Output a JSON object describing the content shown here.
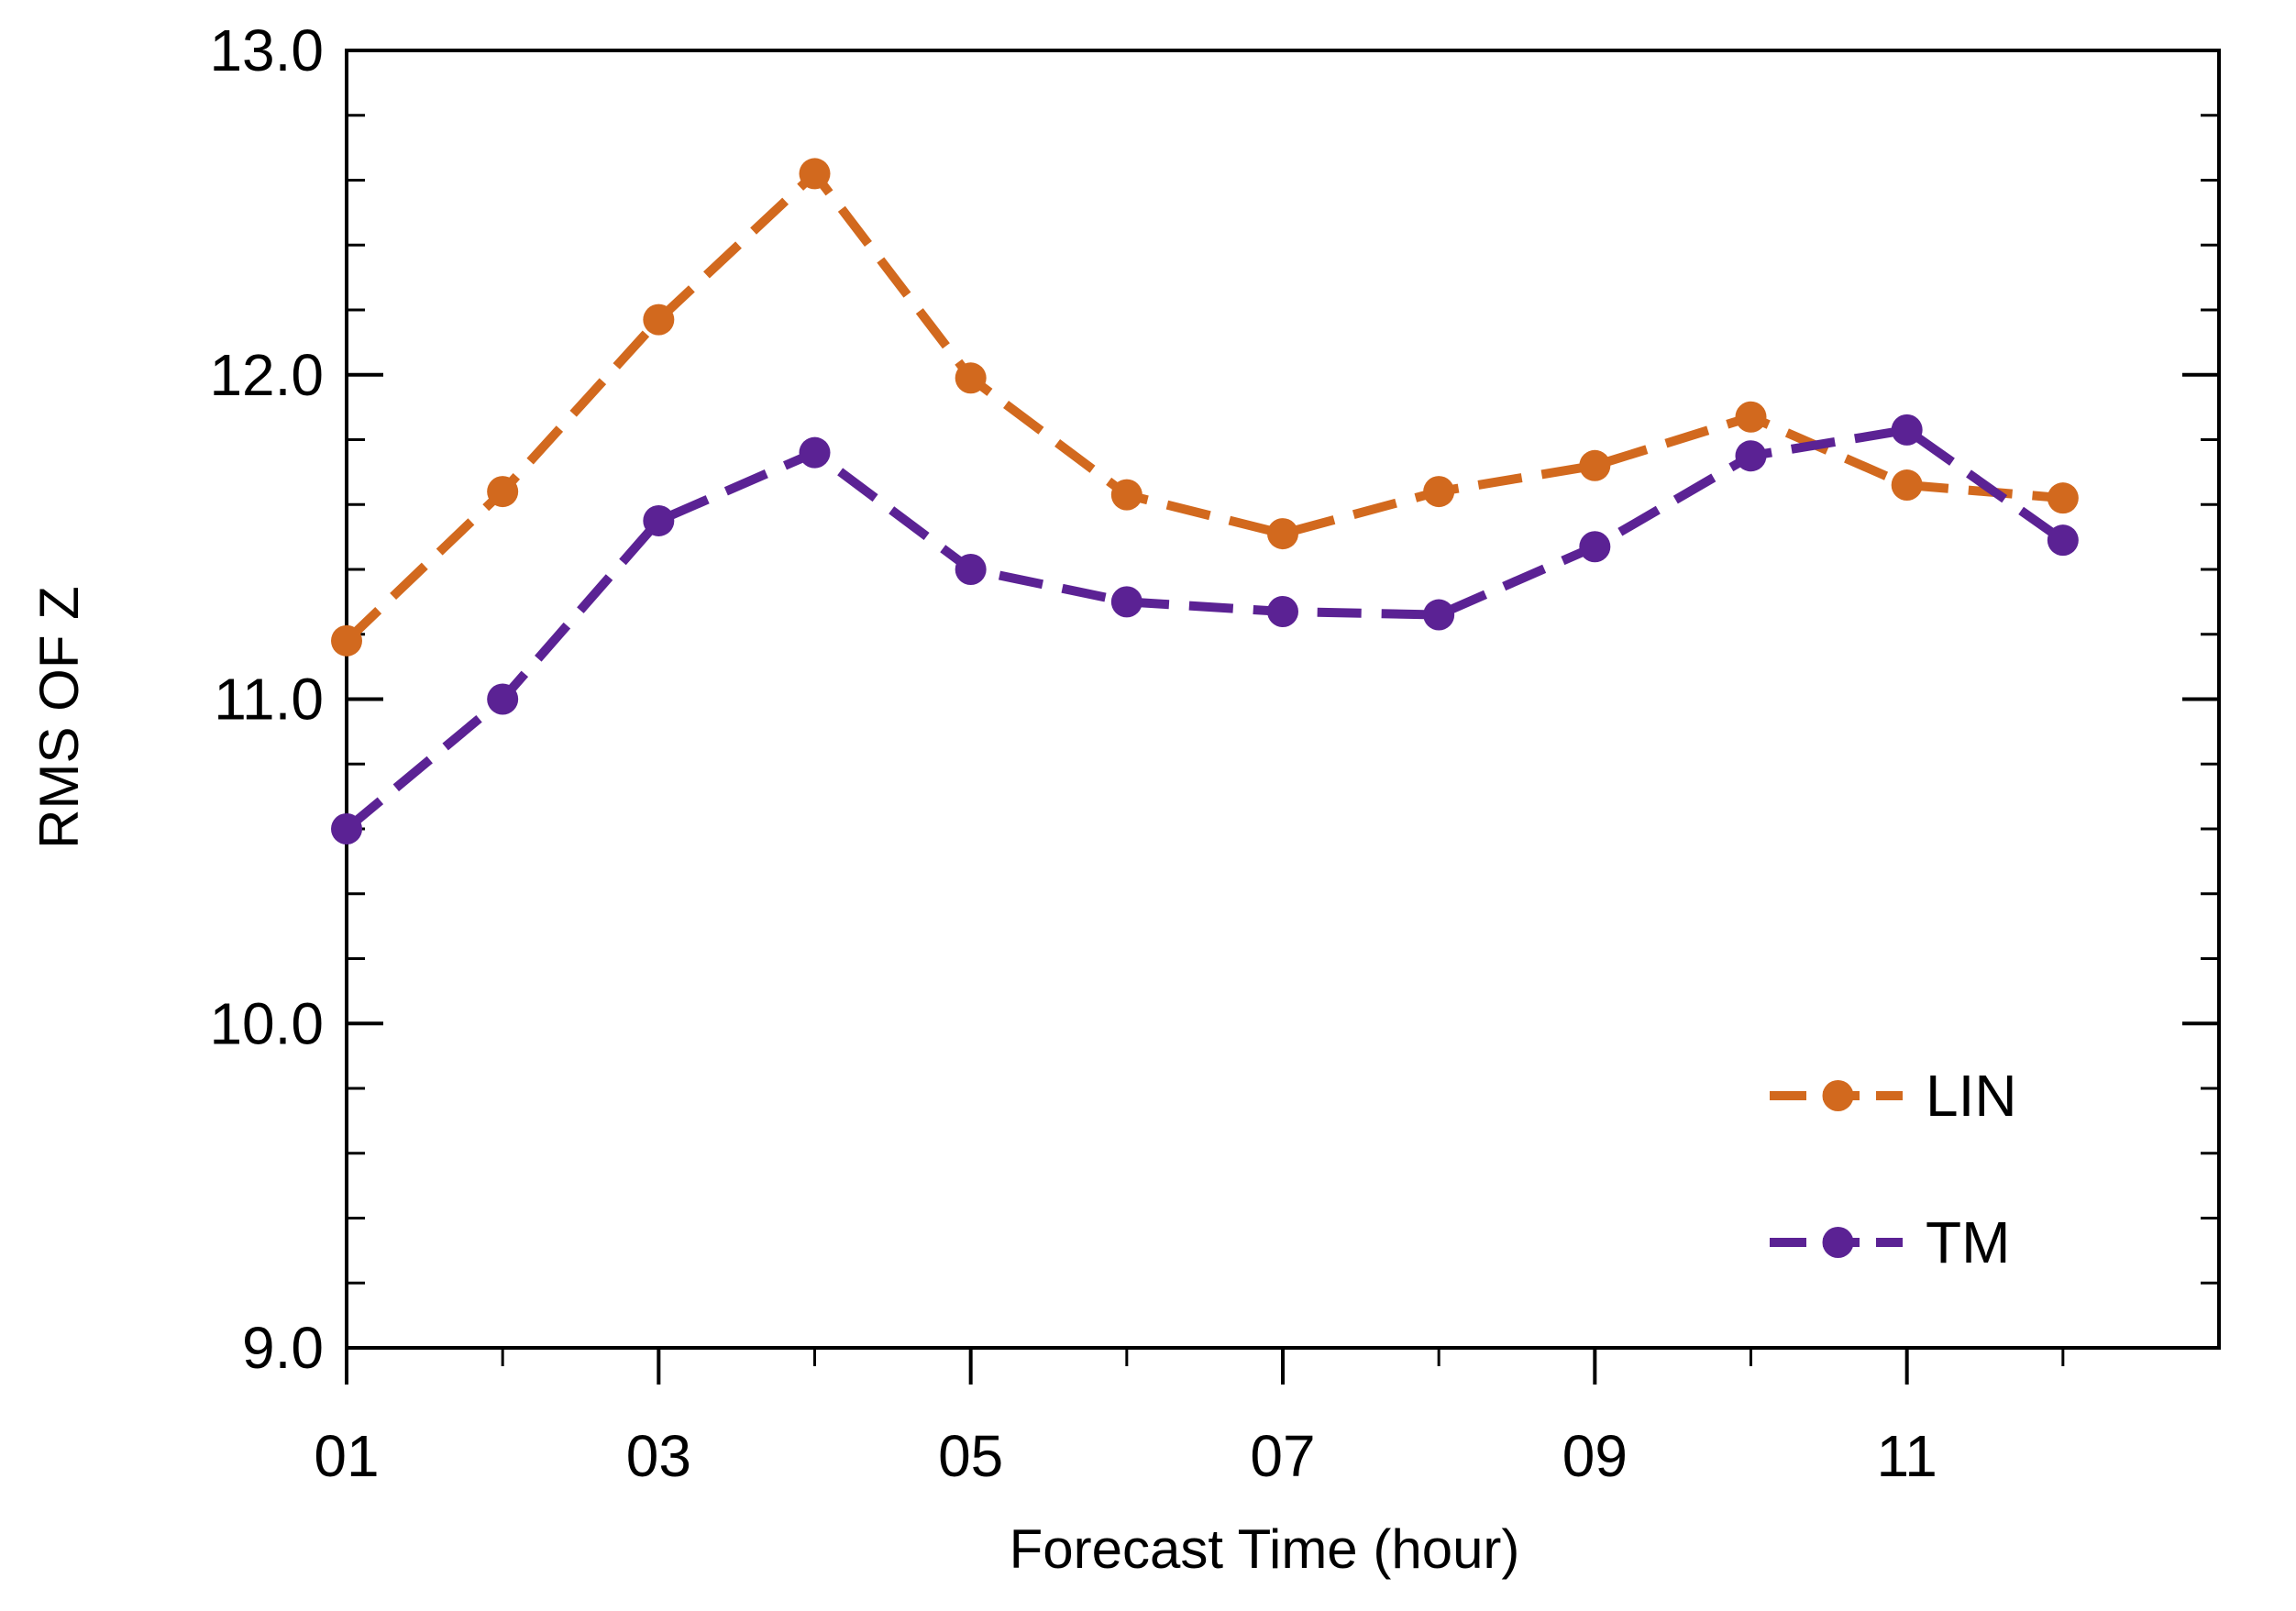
{
  "chart_data": {
    "type": "line",
    "title": "",
    "xlabel": "Forecast Time (hour)",
    "ylabel": "RMS OF Z",
    "x": [
      1,
      2,
      3,
      4,
      5,
      6,
      7,
      8,
      9,
      10,
      11,
      12
    ],
    "xlim": [
      1,
      13
    ],
    "ylim": [
      9.0,
      13.0
    ],
    "x_ticks": [
      {
        "value": 1,
        "label": "01"
      },
      {
        "value": 3,
        "label": "03"
      },
      {
        "value": 5,
        "label": "05"
      },
      {
        "value": 7,
        "label": "07"
      },
      {
        "value": 9,
        "label": "09"
      },
      {
        "value": 11,
        "label": "11"
      }
    ],
    "y_ticks": [
      {
        "value": 9.0,
        "label": "9.0"
      },
      {
        "value": 10.0,
        "label": "10.0"
      },
      {
        "value": 11.0,
        "label": "11.0"
      },
      {
        "value": 12.0,
        "label": "12.0"
      },
      {
        "value": 13.0,
        "label": "13.0"
      }
    ],
    "y_minor_step": 0.2,
    "x_minor_step": 1,
    "grid": false,
    "legend_position": "bottom-right",
    "series": [
      {
        "name": "LIN",
        "color": "#D2691E",
        "line_style": "dashed",
        "marker": "circle",
        "values": [
          11.18,
          11.64,
          12.17,
          12.62,
          11.99,
          11.63,
          11.51,
          11.64,
          11.72,
          11.87,
          11.66,
          11.62
        ]
      },
      {
        "name": "TM",
        "color": "#5B2294",
        "line_style": "dashed",
        "marker": "circle",
        "values": [
          10.6,
          11.0,
          11.55,
          11.76,
          11.4,
          11.3,
          11.27,
          11.26,
          11.47,
          11.75,
          11.83,
          11.49
        ]
      }
    ]
  }
}
